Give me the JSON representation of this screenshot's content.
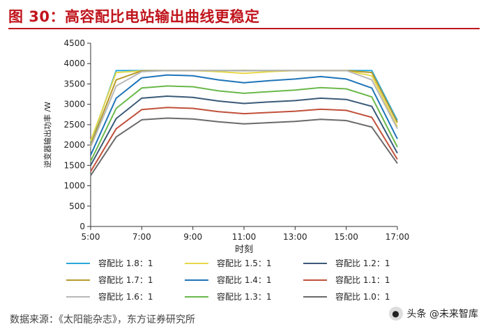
{
  "figure": {
    "title": "图 30：高容配比电站输出曲线更稳定",
    "source": "数据来源：《太阳能杂志》，东方证券研究所"
  },
  "watermark": {
    "text": "头条 @未来智库",
    "icon": "user-icon"
  },
  "chart_data": {
    "type": "line",
    "title": "",
    "xlabel": "时刻",
    "ylabel": "逆变器输出功率 /W",
    "x": [
      5,
      6,
      7,
      8,
      9,
      10,
      11,
      12,
      13,
      14,
      15,
      16,
      17
    ],
    "xticks": [
      5,
      7,
      9,
      11,
      13,
      15,
      17
    ],
    "xtick_labels": [
      "5:00",
      "7:00",
      "9:00",
      "11:00",
      "13:00",
      "15:00",
      "17:00"
    ],
    "xlim": [
      5,
      17
    ],
    "ylim": [
      0,
      4500
    ],
    "yticks": [
      0,
      500,
      1000,
      1500,
      2000,
      2500,
      3000,
      3500,
      4000,
      4500
    ],
    "grid": false,
    "legend_position": "bottom",
    "series": [
      {
        "name": "容配比 1.8：1",
        "color": "#2aa8d8",
        "values": [
          2050,
          3830,
          3830,
          3830,
          3830,
          3830,
          3830,
          3830,
          3830,
          3830,
          3830,
          3830,
          2600
        ]
      },
      {
        "name": "容配比 1.5：1",
        "color": "#e8d84a",
        "values": [
          2100,
          3780,
          3820,
          3830,
          3830,
          3800,
          3760,
          3800,
          3830,
          3830,
          3830,
          3700,
          2450
        ]
      },
      {
        "name": "容配比 1.2：1",
        "color": "#3a5a78",
        "values": [
          1500,
          2650,
          3150,
          3200,
          3170,
          3080,
          3020,
          3060,
          3090,
          3150,
          3120,
          2950,
          1800
        ]
      },
      {
        "name": "容配比 1.7：1",
        "color": "#b89a2a",
        "values": [
          2000,
          3600,
          3820,
          3830,
          3830,
          3830,
          3830,
          3830,
          3830,
          3830,
          3830,
          3780,
          2550
        ]
      },
      {
        "name": "容配比 1.4：1",
        "color": "#1e74b8",
        "values": [
          1750,
          3150,
          3650,
          3720,
          3700,
          3600,
          3530,
          3580,
          3620,
          3680,
          3620,
          3400,
          2150
        ]
      },
      {
        "name": "容配比 1.1：1",
        "color": "#c0503a",
        "values": [
          1350,
          2400,
          2870,
          2920,
          2900,
          2820,
          2770,
          2800,
          2830,
          2880,
          2850,
          2680,
          1650
        ]
      },
      {
        "name": "容配比 1.6：1",
        "color": "#b8b8b8",
        "values": [
          1950,
          3450,
          3800,
          3830,
          3830,
          3830,
          3820,
          3830,
          3830,
          3830,
          3830,
          3600,
          2400
        ]
      },
      {
        "name": "容配比 1.3：1",
        "color": "#6ab84a",
        "values": [
          1600,
          2900,
          3400,
          3450,
          3430,
          3330,
          3270,
          3310,
          3350,
          3410,
          3380,
          3180,
          1950
        ]
      },
      {
        "name": "容配比 1.0：1",
        "color": "#6a6a6a",
        "values": [
          1250,
          2200,
          2620,
          2660,
          2640,
          2570,
          2520,
          2550,
          2580,
          2630,
          2600,
          2440,
          1550
        ]
      }
    ]
  }
}
